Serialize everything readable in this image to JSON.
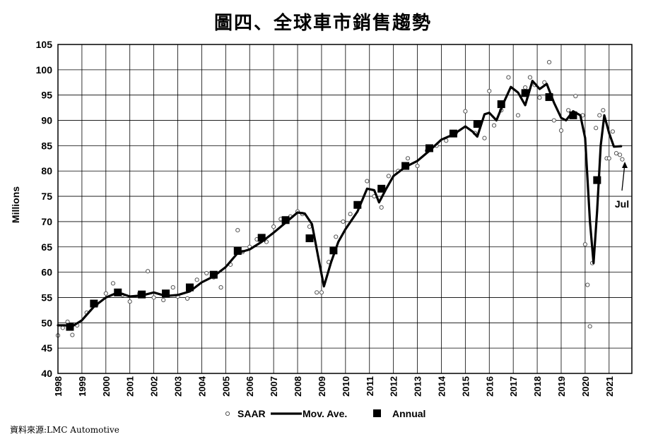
{
  "title": "圖四、全球車市銷售趨勢",
  "source": "資料來源:LMC Automotive",
  "chart_data": {
    "type": "line",
    "title": "圖四、全球車市銷售趨勢",
    "ylabel": "Millions",
    "xlabel": "",
    "ylim": [
      40,
      105
    ],
    "xlim": [
      1998,
      2021.95
    ],
    "yticks": [
      40,
      45,
      50,
      55,
      60,
      65,
      70,
      75,
      80,
      85,
      90,
      95,
      100,
      105
    ],
    "xticks": [
      "1998",
      "1999",
      "2000",
      "2001",
      "2002",
      "2003",
      "2004",
      "2005",
      "2006",
      "2007",
      "2008",
      "2009",
      "2010",
      "2011",
      "2012",
      "2013",
      "2014",
      "2015",
      "2016",
      "2017",
      "2018",
      "2019",
      "2020",
      "2021"
    ],
    "grid": true,
    "legend_position": "bottom",
    "legend": [
      "SAAR",
      "Mov. Ave.",
      "Annual"
    ],
    "annotation": "Jul",
    "series": [
      {
        "name": "Annual",
        "x": [
          1998.5,
          1999.5,
          2000.5,
          2001.5,
          2002.5,
          2003.5,
          2004.5,
          2005.5,
          2006.5,
          2007.5,
          2008.5,
          2009.5,
          2010.5,
          2011.5,
          2012.5,
          2013.5,
          2014.5,
          2015.5,
          2016.5,
          2017.5,
          2018.5,
          2019.5,
          2020.5
        ],
        "values": [
          49.2,
          53.8,
          56.0,
          55.6,
          55.8,
          57.0,
          59.5,
          64.2,
          66.8,
          70.3,
          66.7,
          64.3,
          73.3,
          76.5,
          81.0,
          84.5,
          87.4,
          89.3,
          93.2,
          95.4,
          94.6,
          91.0,
          78.2
        ]
      },
      {
        "name": "Mov. Ave.",
        "x": [
          1998.0,
          1998.3,
          1998.6,
          1999.0,
          1999.5,
          2000.0,
          2000.5,
          2001.0,
          2001.5,
          2002.0,
          2002.5,
          2003.0,
          2003.5,
          2004.0,
          2004.5,
          2005.0,
          2005.5,
          2006.0,
          2006.5,
          2007.0,
          2007.5,
          2008.0,
          2008.3,
          2008.6,
          2008.9,
          2009.1,
          2009.4,
          2009.7,
          2010.0,
          2010.5,
          2010.9,
          2011.2,
          2011.4,
          2011.7,
          2012.0,
          2012.5,
          2013.0,
          2013.5,
          2014.0,
          2014.5,
          2015.0,
          2015.3,
          2015.5,
          2015.8,
          2016.0,
          2016.3,
          2016.6,
          2016.9,
          2017.2,
          2017.5,
          2017.8,
          2018.1,
          2018.4,
          2018.7,
          2019.0,
          2019.2,
          2019.5,
          2019.8,
          2020.0,
          2020.2,
          2020.35,
          2020.5,
          2020.65,
          2020.8,
          2021.0,
          2021.2,
          2021.5
        ],
        "values": [
          49.5,
          49.5,
          49.3,
          50.5,
          53.2,
          55.0,
          56.0,
          55.2,
          55.4,
          56.0,
          55.3,
          55.5,
          56.2,
          58.0,
          59.2,
          61.0,
          63.8,
          64.5,
          66.0,
          67.8,
          69.8,
          71.8,
          71.6,
          69.5,
          62.0,
          57.2,
          62.0,
          66.0,
          68.5,
          72.0,
          76.5,
          76.2,
          73.8,
          76.5,
          79.0,
          80.8,
          82.0,
          84.0,
          86.2,
          87.2,
          88.8,
          87.8,
          86.8,
          91.2,
          91.5,
          90.0,
          93.5,
          96.6,
          95.5,
          93.0,
          97.8,
          96.2,
          97.2,
          93.5,
          90.5,
          90.0,
          91.8,
          91.0,
          86.5,
          70.0,
          61.8,
          72.0,
          85.0,
          91.0,
          87.5,
          84.8,
          84.9
        ]
      },
      {
        "name": "SAAR",
        "x": [
          1998.0,
          1998.2,
          1998.4,
          1998.6,
          1998.8,
          1999.2,
          1999.6,
          2000.0,
          2000.3,
          2000.7,
          2001.0,
          2001.4,
          2001.75,
          2002.0,
          2002.4,
          2002.8,
          2003.0,
          2003.4,
          2003.8,
          2004.2,
          2004.5,
          2004.8,
          2005.2,
          2005.5,
          2005.7,
          2006.0,
          2006.3,
          2006.7,
          2007.0,
          2007.3,
          2007.7,
          2008.0,
          2008.2,
          2008.5,
          2008.8,
          2009.0,
          2009.3,
          2009.6,
          2009.9,
          2010.2,
          2010.5,
          2010.9,
          2011.2,
          2011.5,
          2011.8,
          2012.2,
          2012.6,
          2013.0,
          2013.4,
          2013.8,
          2014.2,
          2014.6,
          2015.0,
          2015.4,
          2015.8,
          2016.0,
          2016.2,
          2016.5,
          2016.8,
          2017.2,
          2017.5,
          2017.7,
          2017.9,
          2018.1,
          2018.3,
          2018.5,
          2018.7,
          2019.0,
          2019.3,
          2019.6,
          2019.9,
          2020.0,
          2020.1,
          2020.2,
          2020.3,
          2020.45,
          2020.6,
          2020.75,
          2020.9,
          2021.0,
          2021.15,
          2021.3,
          2021.45,
          2021.55
        ],
        "values": [
          47.5,
          49.0,
          50.2,
          47.6,
          49.5,
          52.0,
          53.5,
          55.8,
          57.8,
          55.5,
          54.2,
          55.8,
          60.2,
          55.0,
          54.5,
          57.0,
          55.2,
          54.8,
          58.5,
          59.8,
          59.0,
          57.0,
          61.5,
          68.3,
          64.0,
          65.0,
          66.5,
          66.0,
          69.0,
          70.5,
          71.0,
          72.0,
          71.5,
          69.0,
          56.0,
          56.0,
          62.0,
          67.0,
          70.0,
          71.5,
          73.0,
          78.0,
          75.0,
          72.8,
          79.0,
          80.0,
          82.5,
          81.0,
          84.0,
          85.0,
          86.0,
          87.5,
          91.8,
          87.5,
          86.5,
          95.8,
          89.0,
          92.0,
          98.5,
          91.0,
          96.5,
          98.5,
          97.0,
          94.5,
          97.5,
          101.5,
          90.0,
          88.0,
          92.0,
          94.8,
          91.0,
          65.5,
          57.5,
          49.3,
          61.8,
          88.5,
          91.0,
          92.0,
          82.5,
          82.5,
          87.8,
          83.5,
          83.2,
          82.3
        ]
      }
    ]
  }
}
